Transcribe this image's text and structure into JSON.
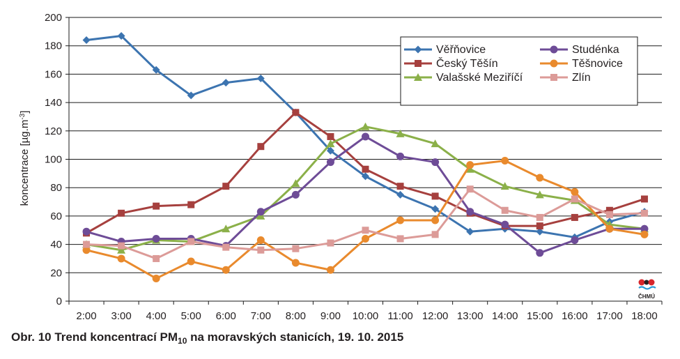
{
  "caption": {
    "prefix": "Obr. 10  Trend koncentrací PM",
    "subscript": "10",
    "suffix": " na moravských stanicích, 19. 10. 2015"
  },
  "logo": {
    "text": "ČHMÚ"
  },
  "chart_data": {
    "type": "line",
    "title": "",
    "xlabel": "",
    "ylabel": "koncentrace [µg.m-3]",
    "ylim": [
      0,
      200
    ],
    "yticks": [
      0,
      20,
      40,
      60,
      80,
      100,
      120,
      140,
      160,
      180,
      200
    ],
    "grid": true,
    "legend_position": "top-right",
    "categories": [
      "2:00",
      "3:00",
      "4:00",
      "5:00",
      "6:00",
      "7:00",
      "8:00",
      "9:00",
      "10:00",
      "11:00",
      "12:00",
      "13:00",
      "14:00",
      "15:00",
      "16:00",
      "17:00",
      "18:00"
    ],
    "series": [
      {
        "name": "Věřňovice",
        "color": "#3c74b0",
        "marker": "diamond",
        "values": [
          184,
          187,
          163,
          145,
          154,
          157,
          133,
          106,
          88,
          75,
          65,
          49,
          51,
          49,
          45,
          56,
          63
        ]
      },
      {
        "name": "Český Těšín",
        "color": "#a6403e",
        "marker": "square",
        "values": [
          48,
          62,
          67,
          68,
          81,
          109,
          133,
          116,
          93,
          81,
          74,
          62,
          53,
          53,
          59,
          64,
          72
        ]
      },
      {
        "name": "Valašské Meziříčí",
        "color": "#8bb049",
        "marker": "triangle",
        "values": [
          40,
          36,
          43,
          42,
          51,
          60,
          83,
          111,
          123,
          118,
          111,
          93,
          81,
          75,
          71,
          54,
          51
        ]
      },
      {
        "name": "Studénka",
        "color": "#6e4c97",
        "marker": "circle",
        "values": [
          49,
          42,
          44,
          44,
          39,
          63,
          75,
          98,
          116,
          102,
          98,
          63,
          54,
          34,
          43,
          51,
          51
        ]
      },
      {
        "name": "Těšnovice",
        "color": "#e98a2d",
        "marker": "circle",
        "values": [
          36,
          30,
          16,
          28,
          22,
          43,
          27,
          22,
          44,
          57,
          57,
          96,
          99,
          87,
          77,
          51,
          47
        ]
      },
      {
        "name": "Zlín",
        "color": "#dc9b98",
        "marker": "square",
        "values": [
          40,
          39,
          30,
          42,
          38,
          36,
          37,
          41,
          50,
          44,
          47,
          79,
          64,
          59,
          72,
          61,
          62
        ]
      }
    ]
  }
}
